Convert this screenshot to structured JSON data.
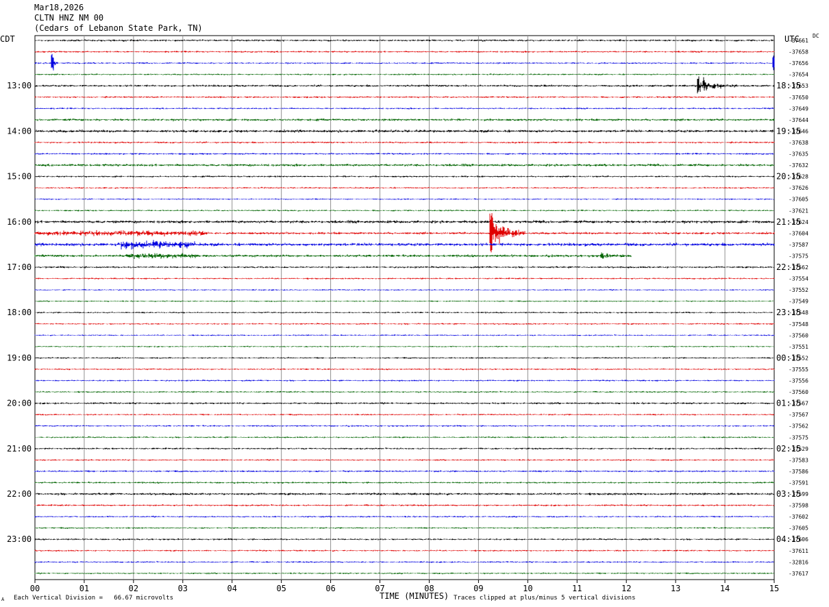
{
  "header": {
    "date": "Mar18,2026",
    "station": "CLTN HNZ NM 00",
    "location": "(Cedars of Lebanon State Park, TN)"
  },
  "left_tz": "CDT",
  "right_tz": "UTC",
  "dc_label": "DC",
  "footer": {
    "vertical_division": "Each Vertical Division =   66.67 microvolts",
    "clip_note": "Traces clipped at plus/minus 5 vertical divisions",
    "mark": "A"
  },
  "colors": [
    "#000000",
    "#e00000",
    "#0000e0",
    "#006400"
  ],
  "chart_data": {
    "type": "line",
    "title": "",
    "xlabel": "TIME (MINUTES)",
    "xlim": [
      0,
      15
    ],
    "x_ticks": [
      "00",
      "01",
      "02",
      "03",
      "04",
      "05",
      "06",
      "07",
      "08",
      "09",
      "10",
      "11",
      "12",
      "13",
      "14",
      "15"
    ],
    "row_minutes": 15,
    "start_cdt": "12:15",
    "left_hour_labels": [
      "13:00",
      "14:00",
      "15:00",
      "16:00",
      "17:00",
      "18:00",
      "19:00",
      "20:00",
      "21:00",
      "22:00",
      "23:00"
    ],
    "right_hour_labels": [
      "18:15",
      "19:15",
      "20:15",
      "21:15",
      "22:15",
      "23:15",
      "00:15",
      "01:15",
      "02:15",
      "03:15",
      "04:15"
    ],
    "dc_offsets": [
      "-37661",
      "-37658",
      "-37656",
      "-37654",
      "-37653",
      "-37650",
      "-37649",
      "-37644",
      "-37646",
      "-37638",
      "-37635",
      "-37632",
      "-37628",
      "-37626",
      "-37605",
      "-37621",
      "-37624",
      "-37604",
      "-37587",
      "-37575",
      "-37562",
      "-37554",
      "-37552",
      "-37549",
      "-37548",
      "-37548",
      "-37560",
      "-37551",
      "-37552",
      "-37555",
      "-37556",
      "-37560",
      "-37567",
      "-37567",
      "-37562",
      "-37575",
      "-37529",
      "-37583",
      "-37586",
      "-37591",
      "-37599",
      "-37598",
      "-37602",
      "-37605",
      "-37606",
      "-37611",
      "-32816",
      "-37617"
    ],
    "noise": [
      1.0,
      0.9,
      0.8,
      0.8,
      1.1,
      0.9,
      0.8,
      1.2,
      1.4,
      0.9,
      0.9,
      1.3,
      0.9,
      0.8,
      0.7,
      0.8,
      1.5,
      1.2,
      1.6,
      1.3,
      1.0,
      0.8,
      0.7,
      0.7,
      0.8,
      0.8,
      0.7,
      0.7,
      0.8,
      0.8,
      0.8,
      0.8,
      1.0,
      0.8,
      0.8,
      0.8,
      0.9,
      0.8,
      0.9,
      0.9,
      1.2,
      0.9,
      0.8,
      0.8,
      0.9,
      0.8,
      0.8,
      0.8
    ],
    "events": [
      {
        "row": 2,
        "minute": 0.35,
        "amplitude": 9,
        "duration": 0.12
      },
      {
        "row": 2,
        "minute": 14.98,
        "amplitude": 9,
        "duration": 0.05
      },
      {
        "row": 4,
        "minute": 13.45,
        "amplitude": 9,
        "duration": 0.8
      },
      {
        "row": 17,
        "minute": 9.25,
        "amplitude": 22,
        "duration": 0.7
      },
      {
        "row": 17,
        "minute": 1.5,
        "amplitude": 2,
        "duration": 4.0
      },
      {
        "row": 18,
        "minute": 2.5,
        "amplitude": 3,
        "duration": 1.5
      },
      {
        "row": 19,
        "minute": 2.6,
        "amplitude": 2,
        "duration": 1.5
      },
      {
        "row": 19,
        "minute": 11.5,
        "amplitude": 2,
        "duration": 0.6
      }
    ],
    "partial_rows": [
      {
        "row": 19,
        "end_minute": 12.1
      }
    ]
  }
}
